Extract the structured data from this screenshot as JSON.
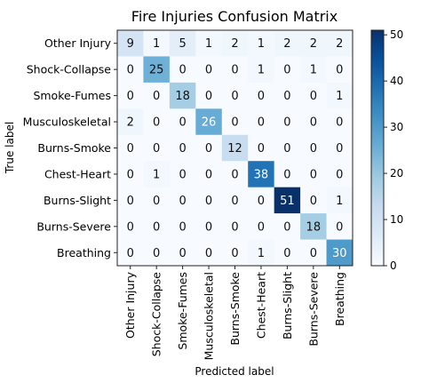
{
  "chart_data": {
    "type": "heatmap",
    "title": "Fire Injuries Confusion Matrix",
    "xlabel": "Predicted label",
    "ylabel": "True label",
    "x_categories": [
      "Other Injury",
      "Shock-Collapse",
      "Smoke-Fumes",
      "Musculoskeletal",
      "Burns-Smoke",
      "Chest-Heart",
      "Burns-Slight",
      "Burns-Severe",
      "Breathing"
    ],
    "y_categories": [
      "Other Injury",
      "Shock-Collapse",
      "Smoke-Fumes",
      "Musculoskeletal",
      "Burns-Smoke",
      "Chest-Heart",
      "Burns-Slight",
      "Burns-Severe",
      "Breathing"
    ],
    "values": [
      [
        9,
        1,
        5,
        1,
        2,
        1,
        2,
        2,
        2
      ],
      [
        0,
        25,
        0,
        0,
        0,
        1,
        0,
        1,
        0
      ],
      [
        0,
        0,
        18,
        0,
        0,
        0,
        0,
        0,
        1
      ],
      [
        2,
        0,
        0,
        26,
        0,
        0,
        0,
        0,
        0
      ],
      [
        0,
        0,
        0,
        0,
        12,
        0,
        0,
        0,
        0
      ],
      [
        0,
        1,
        0,
        0,
        0,
        38,
        0,
        0,
        0
      ],
      [
        0,
        0,
        0,
        0,
        0,
        0,
        51,
        0,
        1
      ],
      [
        0,
        0,
        0,
        0,
        0,
        0,
        0,
        18,
        0
      ],
      [
        0,
        0,
        0,
        0,
        0,
        1,
        0,
        0,
        30
      ]
    ],
    "colormap": "Blues",
    "colorbar": {
      "range": [
        0,
        51
      ],
      "ticks": [
        0,
        10,
        20,
        30,
        40,
        50
      ]
    },
    "grid": false
  }
}
